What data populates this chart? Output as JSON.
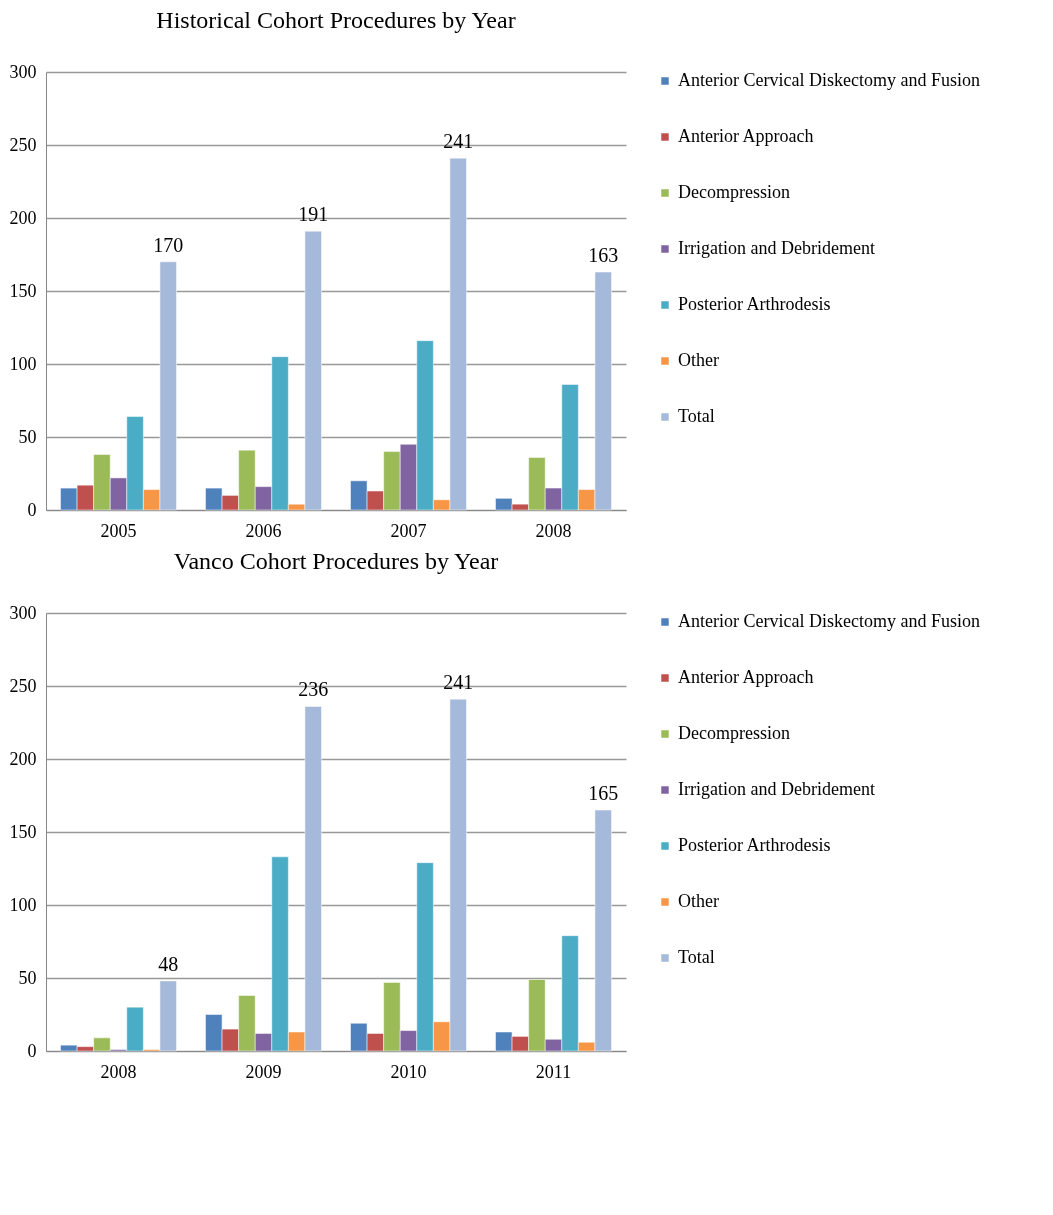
{
  "chart_data": [
    {
      "type": "bar",
      "title": "Historical Cohort Procedures by Year",
      "categories": [
        "2005",
        "2006",
        "2007",
        "2008"
      ],
      "series": [
        {
          "name": "Anterior Cervical Diskectomy and Fusion",
          "color": "#4f81bd",
          "values": [
            15,
            15,
            20,
            8
          ]
        },
        {
          "name": "Anterior Approach",
          "color": "#c0504d",
          "values": [
            17,
            10,
            13,
            4
          ]
        },
        {
          "name": "Decompression",
          "color": "#9bbb59",
          "values": [
            38,
            41,
            40,
            36
          ]
        },
        {
          "name": "Irrigation and Debridement",
          "color": "#8064a2",
          "values": [
            22,
            16,
            45,
            15
          ]
        },
        {
          "name": "Posterior Arthrodesis",
          "color": "#4bacc6",
          "values": [
            64,
            105,
            116,
            86
          ]
        },
        {
          "name": "Other",
          "color": "#f79646",
          "values": [
            14,
            4,
            7,
            14
          ]
        },
        {
          "name": "Total",
          "color": "#a5b9da",
          "values": [
            170,
            191,
            241,
            163
          ],
          "value_labels": [
            "170",
            "191",
            "241",
            "163"
          ]
        }
      ],
      "ylim": [
        0,
        300
      ],
      "yticks": [
        0,
        50,
        100,
        150,
        200,
        250,
        300
      ],
      "grid": "y",
      "legend": "right"
    },
    {
      "type": "bar",
      "title": "Vanco Cohort Procedures by Year",
      "categories": [
        "2008",
        "2009",
        "2010",
        "2011"
      ],
      "series": [
        {
          "name": "Anterior Cervical Diskectomy and Fusion",
          "color": "#4f81bd",
          "values": [
            4,
            25,
            19,
            13
          ]
        },
        {
          "name": "Anterior Approach",
          "color": "#c0504d",
          "values": [
            3,
            15,
            12,
            10
          ]
        },
        {
          "name": "Decompression",
          "color": "#9bbb59",
          "values": [
            9,
            38,
            47,
            49
          ]
        },
        {
          "name": "Irrigation and Debridement",
          "color": "#8064a2",
          "values": [
            1,
            12,
            14,
            8
          ]
        },
        {
          "name": "Posterior Arthrodesis",
          "color": "#4bacc6",
          "values": [
            30,
            133,
            129,
            79
          ]
        },
        {
          "name": "Other",
          "color": "#f79646",
          "values": [
            1,
            13,
            20,
            6
          ]
        },
        {
          "name": "Total",
          "color": "#a5b9da",
          "values": [
            48,
            236,
            241,
            165
          ],
          "value_labels": [
            "48",
            "236",
            "241",
            "165"
          ]
        }
      ],
      "ylim": [
        0,
        300
      ],
      "yticks": [
        0,
        50,
        100,
        150,
        200,
        250,
        300
      ],
      "grid": "y",
      "legend": "right"
    }
  ]
}
